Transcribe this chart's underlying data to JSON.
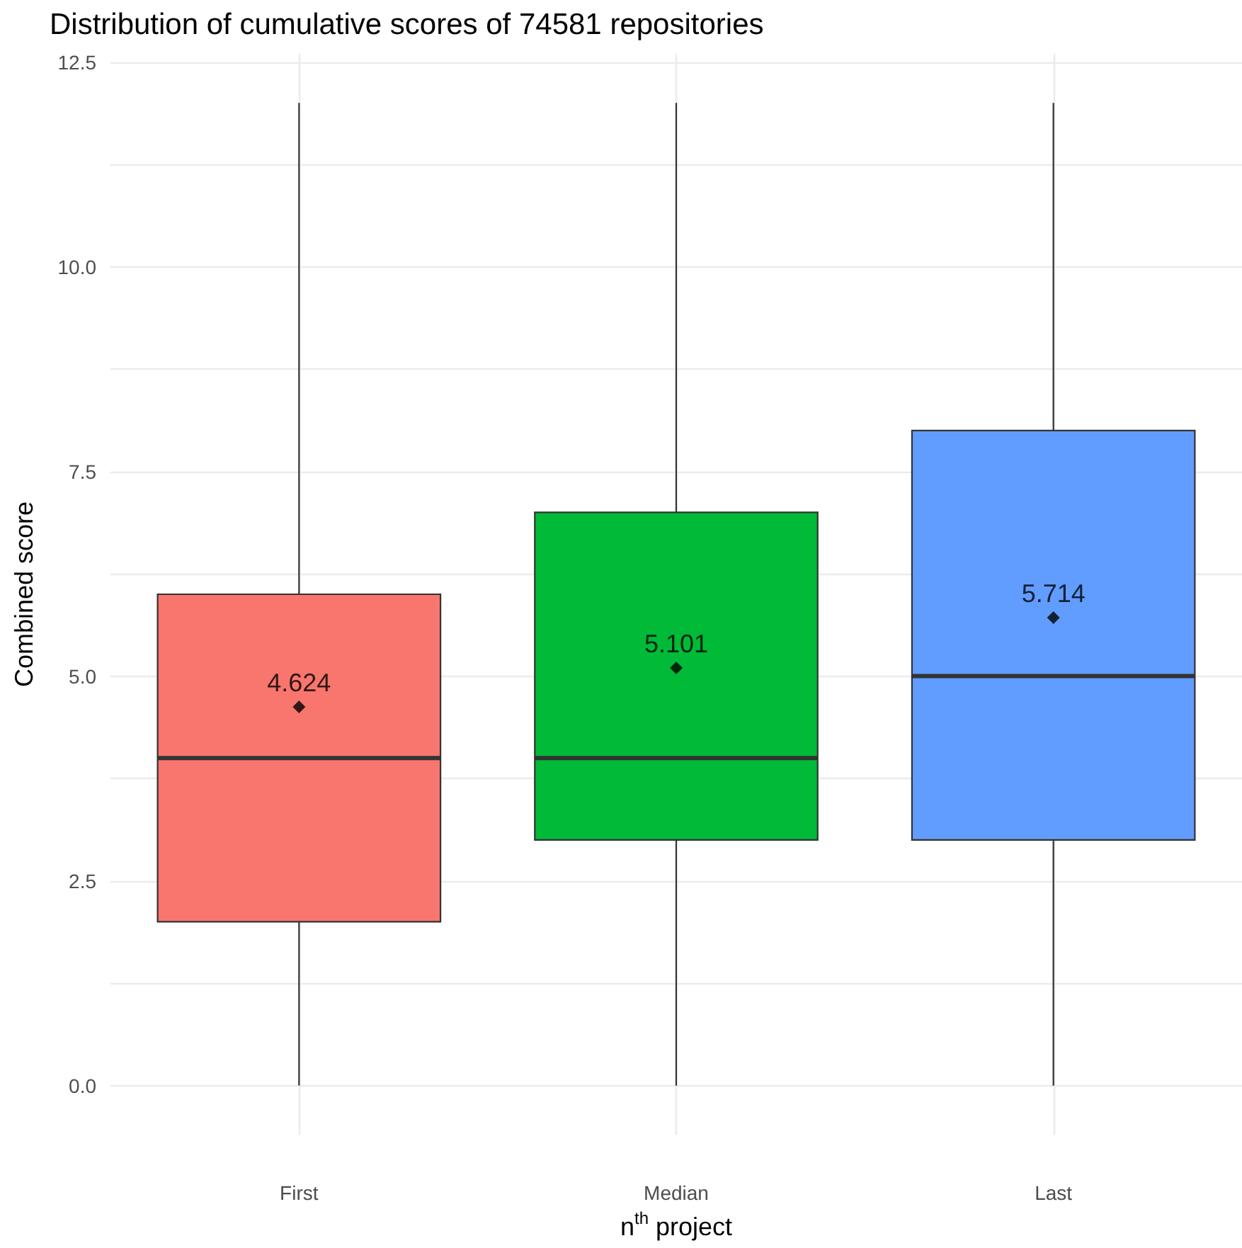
{
  "chart_data": {
    "type": "box",
    "title": "Distribution of cumulative scores of 74581 repositories",
    "xlabel": "n$^{th}$ project",
    "ylabel": "Combined score",
    "categories": [
      "First",
      "Median",
      "Last"
    ],
    "colors": [
      "#f8766d",
      "#00ba38",
      "#619cff"
    ],
    "boxes": [
      {
        "low": 0,
        "q1": 2,
        "median": 4,
        "q3": 6,
        "high": 12,
        "mean": 4.624
      },
      {
        "low": 0,
        "q1": 3,
        "median": 4,
        "q3": 7,
        "high": 12,
        "mean": 5.101
      },
      {
        "low": 0,
        "q1": 3,
        "median": 5,
        "q3": 8,
        "high": 12,
        "mean": 5.714
      }
    ],
    "annotations": [
      "4.624",
      "5.101",
      "5.714"
    ],
    "ylim": [
      -0.6,
      12.6
    ],
    "yticks": [
      {
        "value": 0,
        "label": "0.0"
      },
      {
        "value": 1.25,
        "label": null
      },
      {
        "value": 2.5,
        "label": "2.5"
      },
      {
        "value": 3.75,
        "label": null
      },
      {
        "value": 5,
        "label": "5.0"
      },
      {
        "value": 6.25,
        "label": null
      },
      {
        "value": 7.5,
        "label": "7.5"
      },
      {
        "value": 8.75,
        "label": null
      },
      {
        "value": 10,
        "label": "10.0"
      },
      {
        "value": 11.25,
        "label": null
      },
      {
        "value": 12.5,
        "label": "12.5"
      }
    ],
    "grid": true,
    "legend": false,
    "marker": "diamond"
  }
}
